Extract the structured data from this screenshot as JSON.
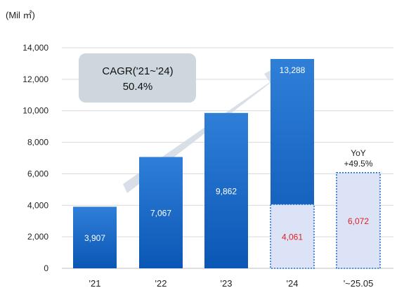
{
  "chart_data": {
    "type": "bar",
    "unit_label": "(Mil ㎡)",
    "ylim": [
      0,
      14000
    ],
    "yticks": [
      "0",
      "2,000",
      "4,000",
      "6,000",
      "8,000",
      "10,000",
      "12,000",
      "14,000"
    ],
    "grid": true,
    "categories": [
      "'21",
      "'22",
      "'23",
      "'24",
      "'~25.05"
    ],
    "values": [
      3907,
      7067,
      9862,
      13288,
      6072
    ],
    "value_labels": [
      "3,907",
      "7,067",
      "9,862",
      "13,288",
      "6,072"
    ],
    "partial_segment": {
      "category": "'24",
      "value": 4061,
      "label": "4,061"
    },
    "cagr_box": {
      "line1": "CAGR('21~'24)",
      "line2": "50.4%"
    },
    "yoy_note": {
      "line1": "YoY",
      "line2": "+49.5%"
    },
    "colors": {
      "bar_top": "#2f7fd8",
      "bar_bottom": "#0a56b4",
      "partial_fill": "#dde3f7",
      "partial_border": "#1f6fd1",
      "partial_text": "#e02020",
      "value_text": "#ffffff",
      "arrow": "#d5dce4",
      "cagr_box": "#cdd7dd"
    }
  }
}
